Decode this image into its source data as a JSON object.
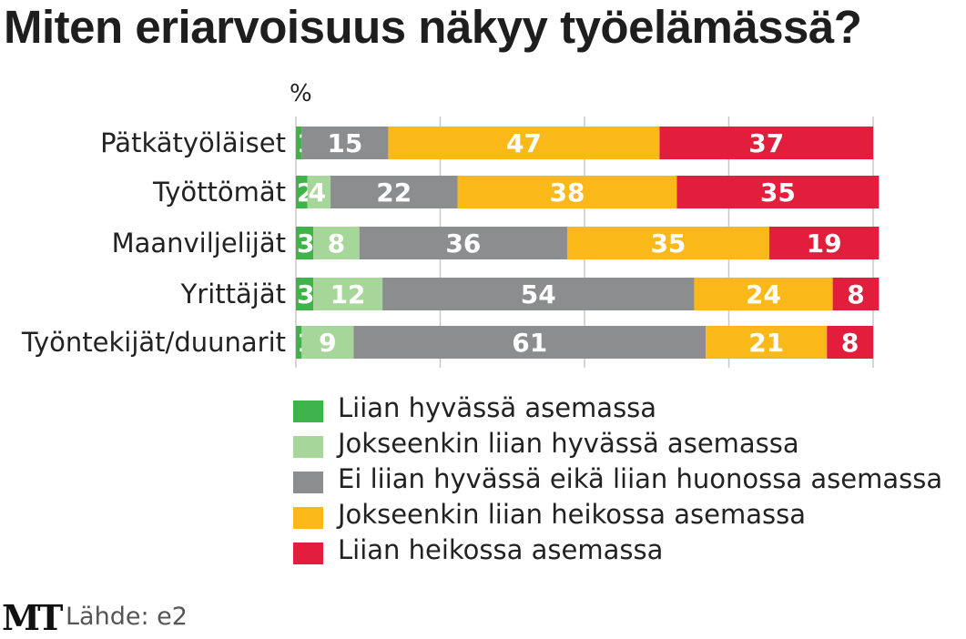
{
  "title": "Miten eriarvoisuus näkyy työelämässä?",
  "colors": {
    "Liian hyvässä asemassa": "#3db34a",
    "Jokseenkin liian hyvässä asemassa": "#a7d69a",
    "Ei liian hyvässä eikä liian huonossa asemassa": "#8c8d8f",
    "Jokseenkin liian heikossa asemassa": "#fbb919",
    "Liian heikossa asemassa": "#e31d3c",
    "gridline": "#c8c8c8",
    "value_label": "#ffffff"
  },
  "chart_data": {
    "type": "bar",
    "orientation": "horizontal",
    "stacked": true,
    "title": "Miten eriarvoisuus näkyy työelämässä?",
    "unit_label": "%",
    "xlim": [
      0,
      100
    ],
    "categories": [
      "Pätkätyöläiset",
      "Työttömät",
      "Maanviljelijät",
      "Yrittäjät",
      "Työntekijät/duunarit"
    ],
    "series": [
      {
        "name": "Liian hyvässä asemassa",
        "values": [
          1,
          2,
          3,
          3,
          1
        ]
      },
      {
        "name": "Jokseenkin liian hyvässä asemassa",
        "values": [
          null,
          4,
          8,
          12,
          9
        ]
      },
      {
        "name": "Ei liian hyvässä eikä liian huonossa asemassa",
        "values": [
          15,
          22,
          36,
          54,
          61
        ]
      },
      {
        "name": "Jokseenkin liian heikossa asemassa",
        "values": [
          47,
          38,
          35,
          24,
          21
        ]
      },
      {
        "name": "Liian heikossa asemassa",
        "values": [
          37,
          35,
          19,
          8,
          8
        ]
      }
    ],
    "legend": "bottom",
    "source": "Lähde: e2"
  },
  "footer": {
    "logo": "MT",
    "source": "Lähde: e2"
  }
}
